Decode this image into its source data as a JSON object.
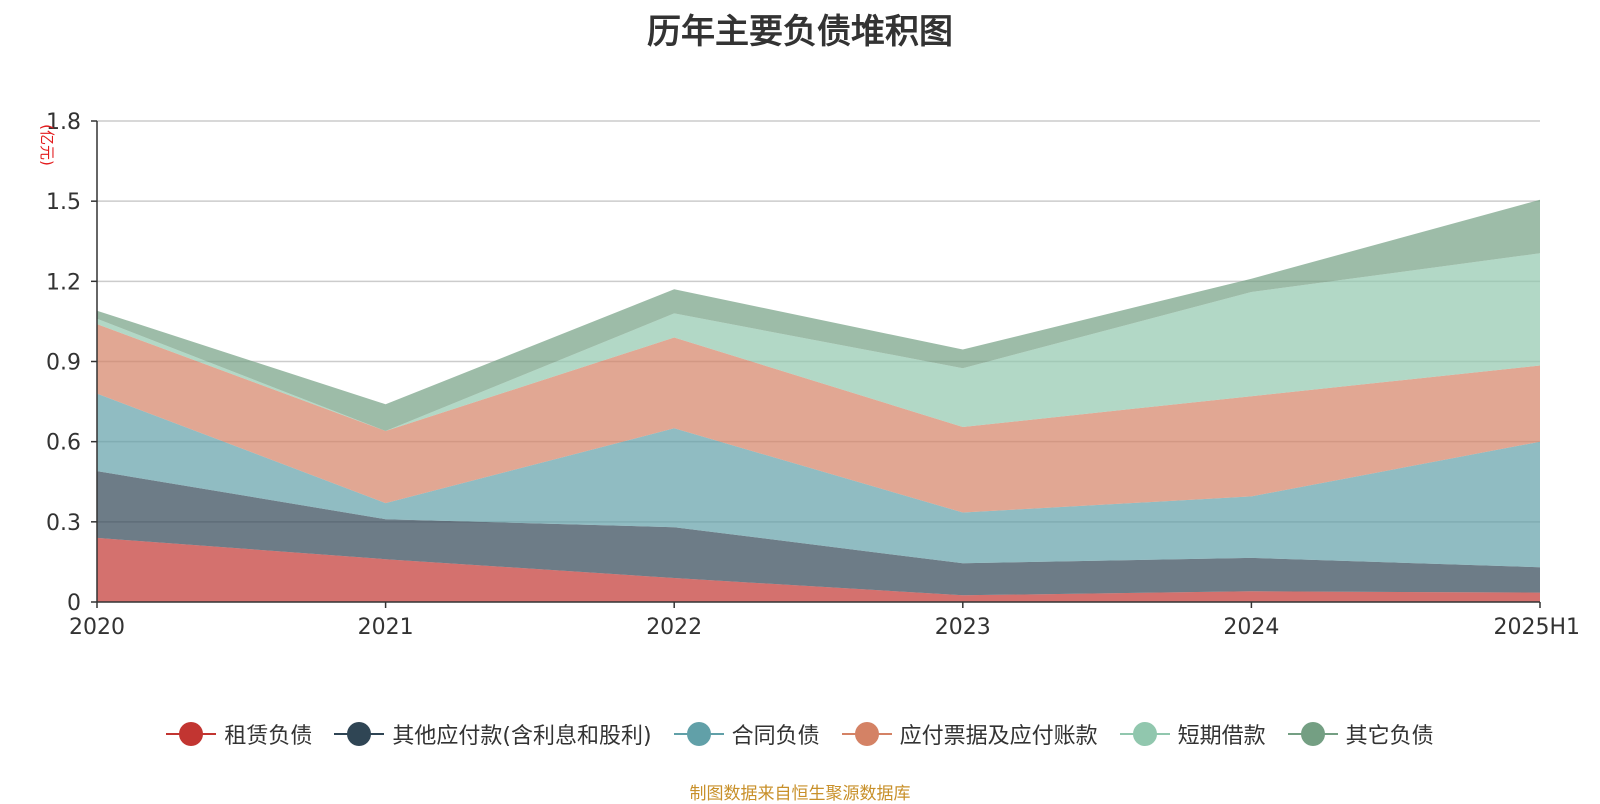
{
  "chart_data": {
    "type": "area",
    "stacked": true,
    "title": "历年主要负债堆积图",
    "unit_label": "(亿元)",
    "categories": [
      "2020",
      "2021",
      "2022",
      "2023",
      "2024",
      "2025H1"
    ],
    "y_ticks": [
      "0",
      "0.3",
      "0.6",
      "0.9",
      "1.2",
      "1.5",
      "1.8"
    ],
    "ylim": [
      0,
      1.8
    ],
    "grid": true,
    "legend_position": "bottom",
    "series": [
      {
        "name": "租赁负债",
        "color": "#c23531",
        "values": [
          0.24,
          0.16,
          0.09,
          0.025,
          0.04,
          0.035
        ]
      },
      {
        "name": "其他应付款(含利息和股利)",
        "color": "#2f4554",
        "values": [
          0.25,
          0.15,
          0.19,
          0.12,
          0.125,
          0.095
        ]
      },
      {
        "name": "合同负债",
        "color": "#61a0a8",
        "values": [
          0.29,
          0.06,
          0.37,
          0.19,
          0.23,
          0.47
        ]
      },
      {
        "name": "应付票据及应付账款",
        "color": "#d48265",
        "values": [
          0.26,
          0.27,
          0.34,
          0.32,
          0.375,
          0.285
        ]
      },
      {
        "name": "短期借款",
        "color": "#91c7ae",
        "values": [
          0.02,
          0.0,
          0.09,
          0.22,
          0.39,
          0.42
        ]
      },
      {
        "name": "其它负债",
        "color": "#749f83",
        "values": [
          0.03,
          0.1,
          0.09,
          0.07,
          0.05,
          0.2
        ]
      }
    ]
  },
  "footer": {
    "source": "制图数据来自恒生聚源数据库"
  }
}
